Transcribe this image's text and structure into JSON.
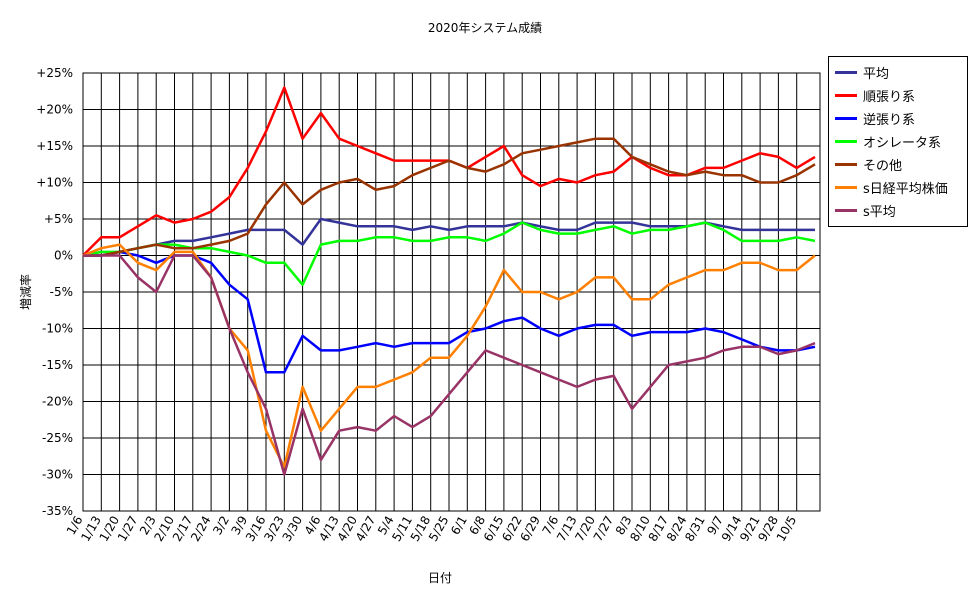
{
  "chart_data": {
    "type": "line",
    "title": "2020年システム成績",
    "x_label": "日付",
    "y_label": "増減率",
    "categories": [
      "1/6",
      "1/13",
      "1/20",
      "1/27",
      "2/3",
      "2/10",
      "2/17",
      "2/24",
      "3/2",
      "3/9",
      "3/16",
      "3/23",
      "3/30",
      "4/6",
      "4/13",
      "4/20",
      "4/27",
      "5/4",
      "5/11",
      "5/18",
      "5/25",
      "6/1",
      "6/8",
      "6/15",
      "6/22",
      "6/29",
      "7/6",
      "7/13",
      "7/20",
      "7/27",
      "8/3",
      "8/10",
      "8/17",
      "8/24",
      "8/31",
      "9/7",
      "9/14",
      "9/21",
      "9/28",
      "10/5",
      null
    ],
    "ylim": [
      -35,
      25
    ],
    "yticks": [
      {
        "value": -35,
        "label": "-35%"
      },
      {
        "value": -30,
        "label": "-30%"
      },
      {
        "value": -25,
        "label": "-25%"
      },
      {
        "value": -20,
        "label": "-20%"
      },
      {
        "value": -15,
        "label": "-15%"
      },
      {
        "value": -10,
        "label": "-10%"
      },
      {
        "value": -5,
        "label": "-5%"
      },
      {
        "value": 0,
        "label": "0%"
      },
      {
        "value": 5,
        "label": "+5%"
      },
      {
        "value": 10,
        "label": "+10%"
      },
      {
        "value": 15,
        "label": "+15%"
      },
      {
        "value": 20,
        "label": "+20%"
      },
      {
        "value": 25,
        "label": "+25%"
      }
    ],
    "grid": true,
    "legend": "right",
    "series": [
      {
        "name": "平均",
        "color": "#333399",
        "values": [
          0,
          0,
          0.5,
          1,
          1.5,
          2,
          2,
          2.5,
          3,
          3.5,
          3.5,
          3.5,
          1.5,
          5,
          4.5,
          4,
          4,
          4,
          3.5,
          4,
          3.5,
          4,
          4,
          4,
          4.5,
          4,
          3.5,
          3.5,
          4.5,
          4.5,
          4.5,
          4,
          4,
          4,
          4.5,
          4,
          3.5,
          3.5,
          3.5,
          3.5,
          3.5
        ]
      },
      {
        "name": "順張り系",
        "color": "#ff0000",
        "values": [
          0,
          2.5,
          2.5,
          4,
          5.5,
          4.5,
          5,
          6,
          8,
          12,
          17,
          23,
          16,
          19.5,
          16,
          15,
          14,
          13,
          13,
          13,
          13,
          12,
          13.5,
          15,
          11,
          9.5,
          10.5,
          10,
          11,
          11.5,
          13.5,
          12,
          11,
          11,
          12,
          12,
          13,
          14,
          13.5,
          12,
          13.5
        ]
      },
      {
        "name": "逆張り系",
        "color": "#0000ff",
        "values": [
          0,
          0,
          0.5,
          0,
          -1,
          0,
          0,
          -1,
          -4,
          -6,
          -16,
          -16,
          -11,
          -13,
          -13,
          -12.5,
          -12,
          -12.5,
          -12,
          -12,
          -12,
          -10.5,
          -10,
          -9,
          -8.5,
          -10,
          -11,
          -10,
          -9.5,
          -9.5,
          -11,
          -10.5,
          -10.5,
          -10.5,
          -10,
          -10.5,
          -11.5,
          -12.5,
          -13,
          -13,
          -12.5
        ]
      },
      {
        "name": "オシレータ系",
        "color": "#00ff00",
        "values": [
          0,
          0.5,
          0.5,
          1,
          1.5,
          1.5,
          1,
          1,
          0.5,
          0,
          -1,
          -1,
          -4,
          1.5,
          2,
          2,
          2.5,
          2.5,
          2,
          2,
          2.5,
          2.5,
          2,
          3,
          4.5,
          3.5,
          3,
          3,
          3.5,
          4,
          3,
          3.5,
          3.5,
          4,
          4.5,
          3.5,
          2,
          2,
          2,
          2.5,
          2
        ]
      },
      {
        "name": "その他",
        "color": "#993300",
        "values": [
          0,
          0,
          0.5,
          1,
          1.5,
          1,
          1,
          1.5,
          2,
          3,
          7,
          10,
          7,
          9,
          10,
          10.5,
          9,
          9.5,
          11,
          12,
          13,
          12,
          11.5,
          12.5,
          14,
          14.5,
          15,
          15.5,
          16,
          16,
          13.5,
          12.5,
          11.5,
          11,
          11.5,
          11,
          11,
          10,
          10,
          11,
          12.5
        ]
      },
      {
        "name": "s日経平均株価",
        "color": "#ff8000",
        "values": [
          0,
          1,
          1.5,
          -1,
          -2,
          0.5,
          0.5,
          -3,
          -10,
          -13,
          -24,
          -29,
          -18,
          -24,
          -21,
          -18,
          -18,
          -17,
          -16,
          -14,
          -14,
          -11,
          -7,
          -2,
          -5,
          -5,
          -6,
          -5,
          -3,
          -3,
          -6,
          -6,
          -4,
          -3,
          -2,
          -2,
          -1,
          -1,
          -2,
          -2,
          0
        ]
      },
      {
        "name": "s平均",
        "color": "#993366",
        "values": [
          0,
          0,
          0,
          -3,
          -5,
          0,
          0,
          -3,
          -10,
          -16,
          -21,
          -30,
          -21,
          -28,
          -24,
          -23.5,
          -24,
          -22,
          -23.5,
          -22,
          -19,
          -16,
          -13,
          -14,
          -15,
          -16,
          -17,
          -18,
          -17,
          -16.5,
          -21,
          -18,
          -15,
          -14.5,
          -14,
          -13,
          -12.5,
          -12.5,
          -13.5,
          -13,
          -12
        ]
      }
    ]
  }
}
